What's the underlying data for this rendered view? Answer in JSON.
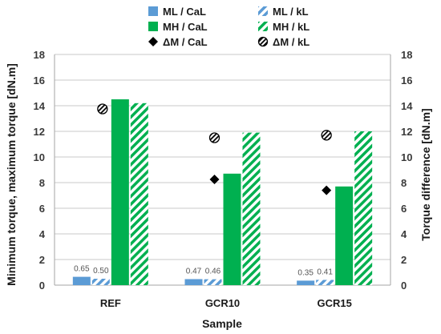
{
  "chart_data": {
    "type": "bar",
    "categories": [
      "REF",
      "GCR10",
      "GCR15"
    ],
    "xlabel": "Sample",
    "ylabel": "Minimum torque, maximum torque [dN.m]",
    "y2label": "Torque difference [dN.m]",
    "ylim": [
      0,
      18
    ],
    "y2lim": [
      0,
      18
    ],
    "yticks": [
      0,
      2,
      4,
      6,
      8,
      10,
      12,
      14,
      16,
      18
    ],
    "grid": true,
    "legend_position": "top",
    "series": [
      {
        "name": "ML / CaL",
        "kind": "bar",
        "style": "solid",
        "color": "#5b9bd5",
        "values": [
          0.65,
          0.47,
          0.35
        ],
        "labels": [
          "0.65",
          "0.47",
          "0.35"
        ]
      },
      {
        "name": "ML / kL",
        "kind": "bar",
        "style": "hatched",
        "color": "#5b9bd5",
        "values": [
          0.5,
          0.46,
          0.41
        ],
        "labels": [
          "0.50",
          "0.46",
          "0.41"
        ]
      },
      {
        "name": "MH / CaL",
        "kind": "bar",
        "style": "solid",
        "color": "#00b050",
        "values": [
          14.5,
          8.7,
          7.7
        ]
      },
      {
        "name": "MH / kL",
        "kind": "bar",
        "style": "hatched",
        "color": "#00b050",
        "values": [
          14.2,
          11.9,
          12.0
        ]
      },
      {
        "name": "ΔM / CaL",
        "kind": "marker",
        "marker": "diamond",
        "axis": "y2",
        "color": "#000000",
        "values": [
          13.8,
          8.25,
          7.4
        ]
      },
      {
        "name": "ΔM / kL",
        "kind": "marker",
        "marker": "hatched-circle",
        "axis": "y2",
        "color": "#000000",
        "values": [
          13.75,
          11.5,
          11.7
        ]
      }
    ]
  }
}
